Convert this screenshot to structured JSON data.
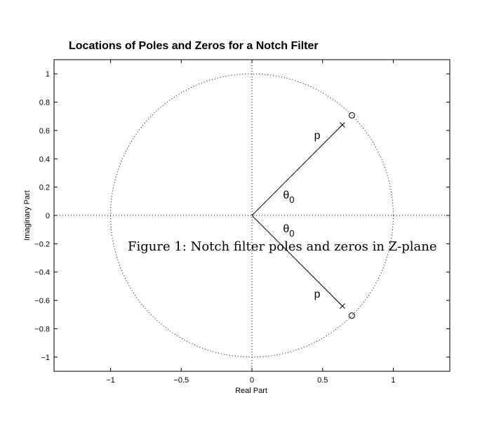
{
  "chart_data": {
    "type": "scatter",
    "title": "Locations of Poles and Zeros for a Notch Filter",
    "xlabel": "Real Part",
    "ylabel": "Imaginary Part",
    "xlim": [
      -1.4,
      1.4
    ],
    "ylim": [
      -1.1,
      1.1
    ],
    "xticks": [
      -1,
      -0.5,
      0,
      0.5,
      1
    ],
    "xtick_labels": [
      "−1",
      "−0.5",
      "0",
      "0.5",
      "1"
    ],
    "yticks": [
      1,
      0.8,
      0.6,
      0.4,
      0.2,
      0,
      -0.2,
      -0.4,
      -0.6,
      -0.8,
      -1
    ],
    "ytick_labels": [
      "1",
      "0.8",
      "0.6",
      "0.4",
      "0.2",
      "0",
      "−0.2",
      "−0.4",
      "−0.6",
      "−0.8",
      "−1"
    ],
    "grid": false,
    "unit_circle": {
      "radius": 1,
      "style": "dotted"
    },
    "axis_lines": {
      "style": "dotted",
      "x": 0,
      "y": 0
    },
    "poles": [
      {
        "x": 0.64,
        "y": 0.64
      },
      {
        "x": 0.64,
        "y": -0.64
      }
    ],
    "zeros": [
      {
        "x": 0.707,
        "y": 0.707
      },
      {
        "x": 0.707,
        "y": -0.707
      }
    ],
    "annotations": [
      {
        "text": "p",
        "x": 0.44,
        "y": 0.54
      },
      {
        "text": "p",
        "x": 0.44,
        "y": -0.58
      },
      {
        "text": "θ",
        "sub": "0",
        "x": 0.22,
        "y": 0.12
      },
      {
        "text": "θ",
        "sub": "0",
        "x": 0.22,
        "y": -0.12
      }
    ]
  },
  "caption": "Figure 1: Notch filter poles and zeros in Z-plane",
  "colors": {
    "ink": "#000000",
    "background": "#ffffff"
  }
}
